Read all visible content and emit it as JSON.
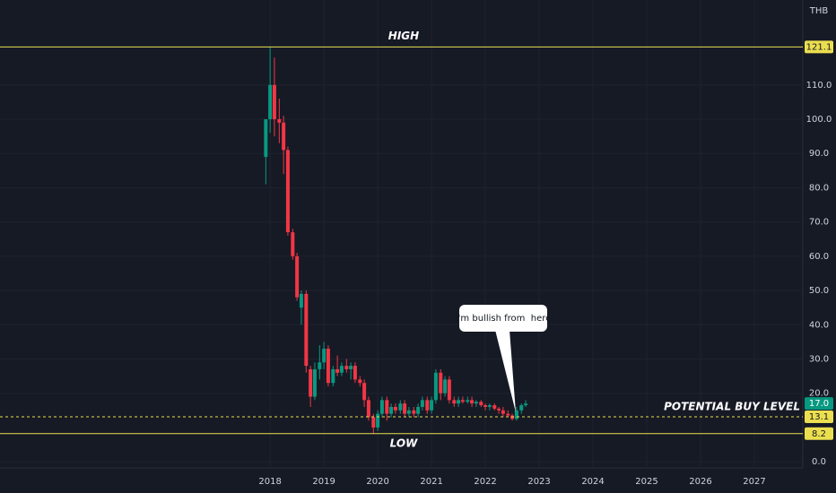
{
  "chart_data": {
    "type": "candlestick",
    "currency": "THB",
    "up_color": "#089981",
    "down_color": "#f23645",
    "grid": true,
    "xlim": [
      2012.98,
      2027.9
    ],
    "ylim": [
      -1.8,
      134.8
    ],
    "xticks": [
      2018,
      2019,
      2020,
      2021,
      2022,
      2023,
      2024,
      2025,
      2026,
      2027
    ],
    "yticks": [
      {
        "value": 0,
        "label": "0.0"
      },
      {
        "value": 20,
        "label": "20.0"
      },
      {
        "value": 30,
        "label": "30.0"
      },
      {
        "value": 40,
        "label": "40.0"
      },
      {
        "value": 50,
        "label": "50.0"
      },
      {
        "value": 60,
        "label": "60.0"
      },
      {
        "value": 70,
        "label": "70.0"
      },
      {
        "value": 80,
        "label": "80.0"
      },
      {
        "value": 90,
        "label": "90.0"
      },
      {
        "value": 100,
        "label": "100.0"
      },
      {
        "value": 110,
        "label": "110.0"
      }
    ],
    "x": [
      2017.92,
      2018.0,
      2018.08,
      2018.17,
      2018.25,
      2018.33,
      2018.42,
      2018.5,
      2018.58,
      2018.67,
      2018.75,
      2018.83,
      2018.92,
      2019.0,
      2019.08,
      2019.17,
      2019.25,
      2019.33,
      2019.42,
      2019.5,
      2019.58,
      2019.67,
      2019.75,
      2019.83,
      2019.92,
      2020.0,
      2020.08,
      2020.17,
      2020.25,
      2020.33,
      2020.42,
      2020.5,
      2020.58,
      2020.67,
      2020.75,
      2020.83,
      2020.92,
      2021.0,
      2021.08,
      2021.17,
      2021.25,
      2021.33,
      2021.42,
      2021.5,
      2021.58,
      2021.67,
      2021.75,
      2021.83,
      2021.92,
      2022.0,
      2022.08,
      2022.17,
      2022.25,
      2022.33,
      2022.42,
      2022.5,
      2022.58,
      2022.67,
      2022.75
    ],
    "open": [
      89,
      100,
      110,
      100,
      99,
      91,
      67,
      60,
      45,
      49,
      27,
      19,
      27,
      29,
      33,
      23,
      27,
      26,
      28,
      27,
      28,
      24,
      23,
      18,
      13,
      10,
      14,
      18,
      14,
      16,
      15,
      17,
      14,
      15,
      14,
      16,
      18,
      15,
      18,
      26,
      20,
      24,
      18,
      17,
      18,
      17.5,
      18,
      17,
      17.5,
      16.5,
      16,
      16.5,
      15.5,
      15,
      14,
      13.5,
      12.5,
      15,
      16.5
    ],
    "high": [
      100,
      121.1,
      118,
      106,
      101,
      92,
      68,
      61,
      50,
      50,
      28,
      29,
      34,
      35,
      34,
      28,
      31,
      29,
      30,
      29,
      29,
      25,
      24,
      19,
      14,
      15,
      19,
      19,
      17,
      17,
      18,
      18,
      16,
      16,
      17,
      19,
      19,
      19,
      27,
      27,
      25,
      25,
      19,
      19,
      19,
      19,
      19,
      18,
      18,
      17,
      17,
      17,
      16,
      16,
      15,
      14,
      16,
      17,
      18
    ],
    "low": [
      81,
      96,
      95,
      93,
      84,
      66,
      59,
      47,
      40,
      26,
      16,
      18,
      24,
      27,
      22,
      22,
      25,
      25,
      26,
      24,
      23,
      22,
      16,
      12,
      8.2,
      9,
      13,
      12,
      13,
      14,
      14,
      13,
      13,
      13,
      13,
      15,
      14,
      14,
      17,
      18,
      19,
      17,
      16,
      16,
      17,
      17,
      16,
      16,
      16,
      15,
      15,
      15,
      14,
      13,
      13,
      12,
      12,
      14,
      16
    ],
    "close": [
      100,
      110,
      100,
      99,
      91,
      67,
      60,
      48,
      49,
      28,
      19,
      27,
      29,
      33,
      23,
      27,
      26,
      28,
      27,
      28,
      24,
      23,
      18,
      13,
      10,
      14,
      18,
      14,
      16,
      15,
      17,
      14,
      15,
      14,
      16,
      18,
      15,
      18,
      26,
      20,
      24,
      18,
      17,
      18,
      17.5,
      18,
      17,
      17.5,
      16.5,
      16,
      16.5,
      15.5,
      15,
      14,
      13.5,
      12.5,
      15,
      16.5,
      17
    ],
    "levels": [
      {
        "value": 121.1,
        "text": "HIGH",
        "color": "#ecdf4f",
        "style": "solid"
      },
      {
        "value": 13.1,
        "text": "POTENTIAL BUY LEVEL",
        "color": "#ecdf4f",
        "style": "dashed"
      },
      {
        "value": 8.2,
        "text": "LOW",
        "color": "#ecdf4f",
        "style": "solid"
      }
    ],
    "last_price": {
      "value": 17,
      "label": "17.0"
    },
    "annotation": "I'm bullish from  here"
  }
}
